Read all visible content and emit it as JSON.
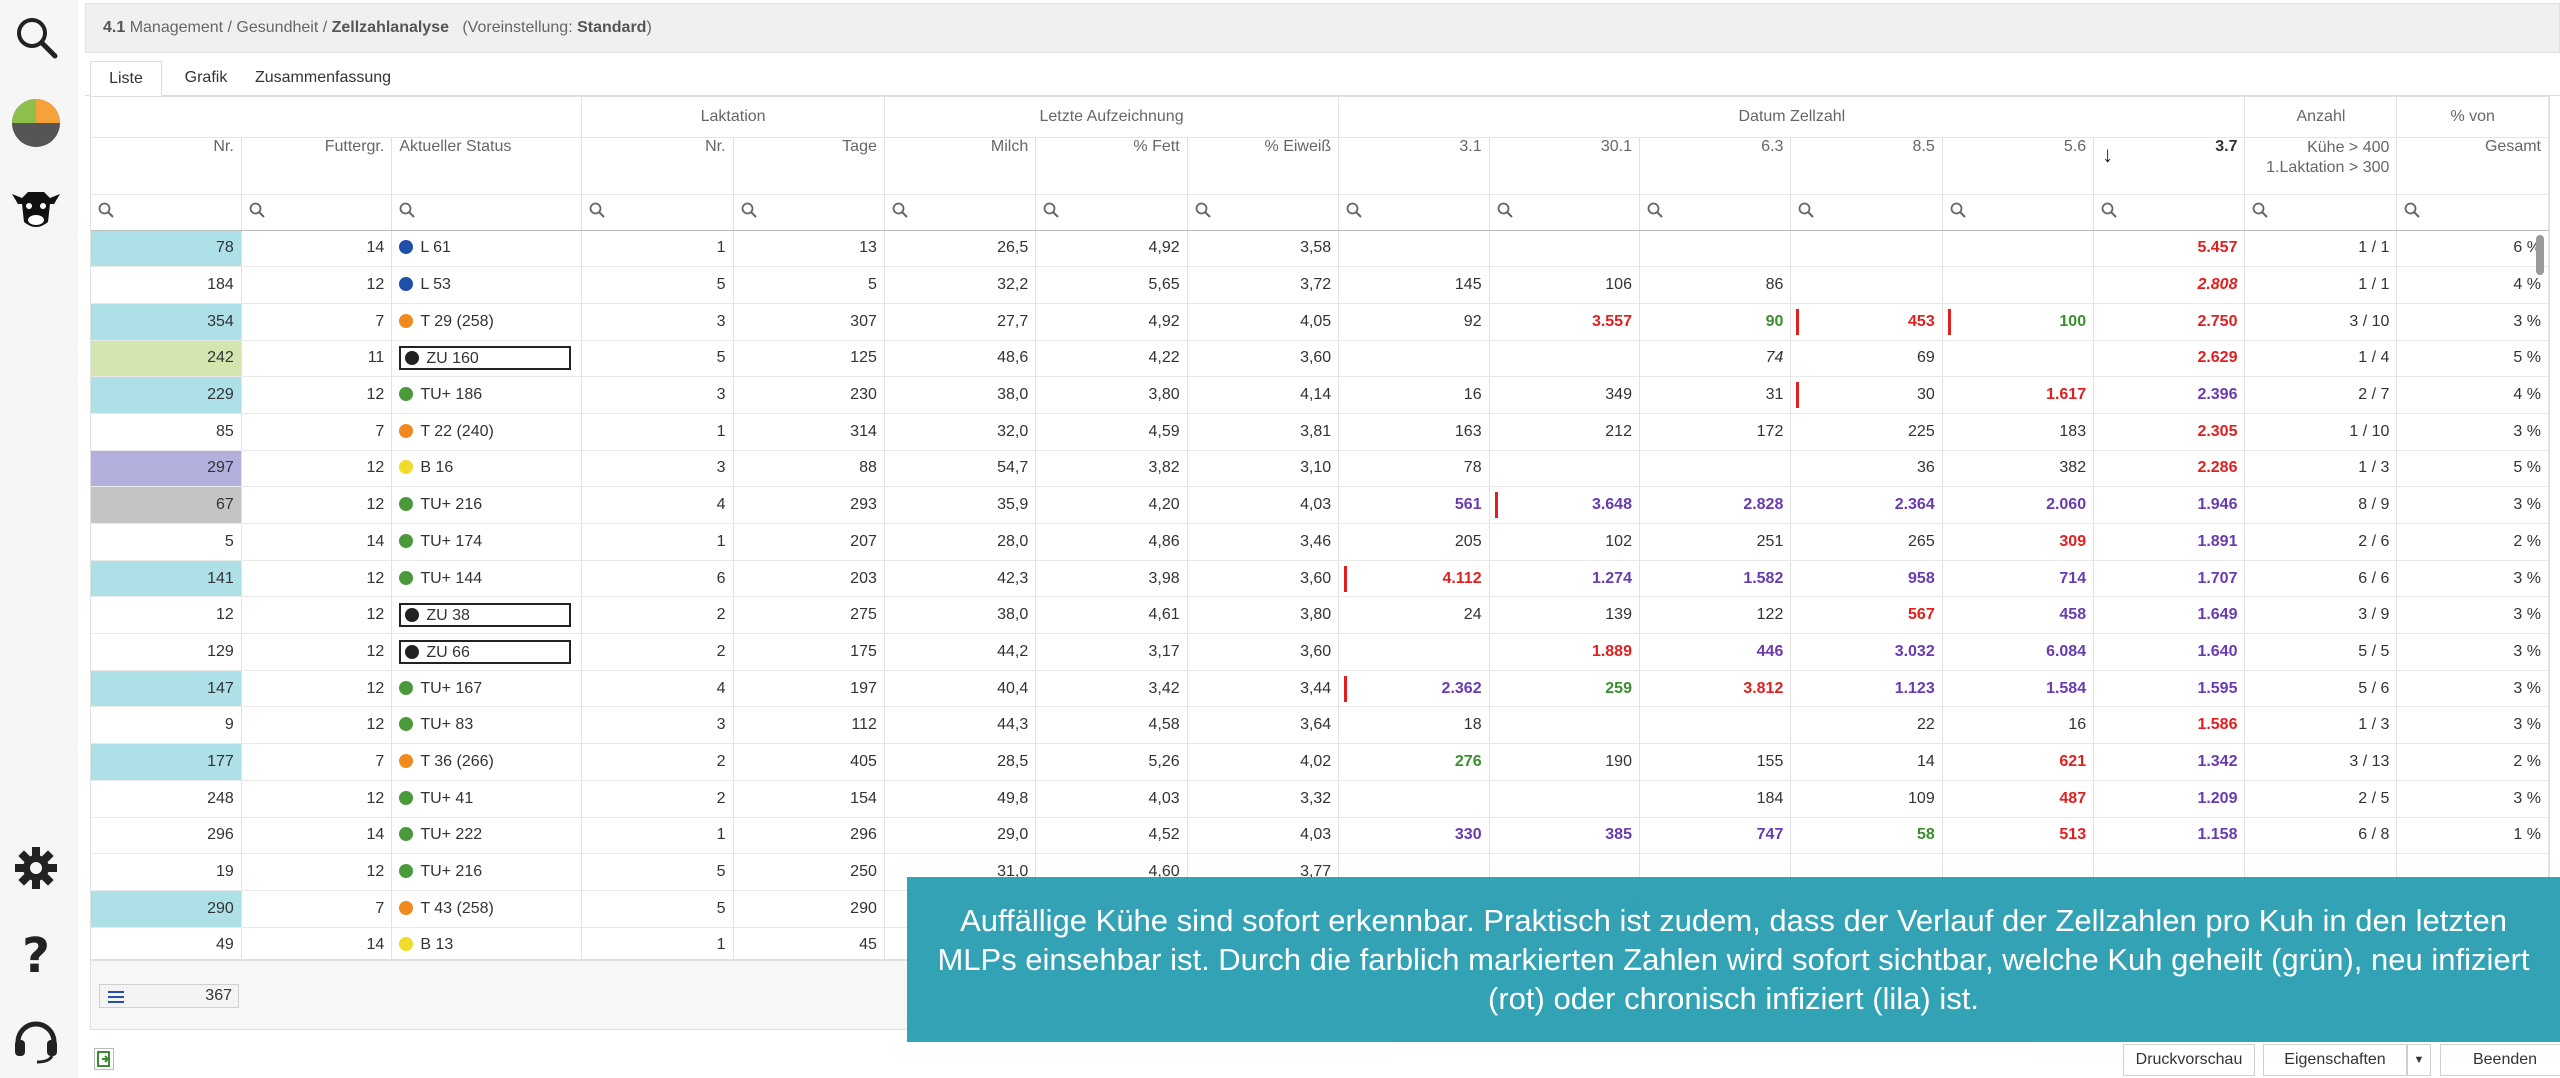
{
  "breadcrumb": {
    "num": "4.1",
    "path": "Management / Gesundheit /",
    "current": "Zellzahlanalyse",
    "preset_prefix": "(Voreinstellung:",
    "preset_value": "Standard",
    "preset_suffix": ")"
  },
  "tabs": [
    "Liste",
    "Grafik",
    "Zusammenfassung"
  ],
  "groups": {
    "laktation": "Laktation",
    "letzte": "Letzte Aufzeichnung",
    "datum": "Datum Zellzahl",
    "anzahl": "Anzahl",
    "prozent": "% von"
  },
  "columns": {
    "nr": "Nr.",
    "futter": "Futtergr.",
    "status": "Aktueller Status",
    "lak_nr": "Nr.",
    "tage": "Tage",
    "milch": "Milch",
    "fett": "% Fett",
    "eiweiss": "% Eiweiß",
    "d1": "3.1",
    "d2": "30.1",
    "d3": "6.3",
    "d4": "8.5",
    "d5": "5.6",
    "d6": "3.7",
    "sort_arrow": "↓",
    "anzahl_l1": "Kühe > 400",
    "anzahl_l2": "1.Laktation > 300",
    "prozent": "Gesamt"
  },
  "colors": {
    "cyan": "#aee0e8",
    "lime": "#d3e6b0",
    "lavender": "#b3b0dd",
    "gray": "#c4c4c4",
    "red": "#e02020",
    "green": "#3b8e2e",
    "purple": "#6a3ab0",
    "dot_blue": "#1f4fa8",
    "dot_orange": "#f08a1e",
    "dot_green": "#4a9a3c",
    "dot_yellow": "#f0dc2a",
    "dot_black": "#222222"
  },
  "rows": [
    {
      "nr": "78",
      "bg": "cyan",
      "futter": "14",
      "dot": "dot_blue",
      "status": "L 61",
      "boxed": false,
      "lak": "1",
      "tage": "13",
      "milch": "26,5",
      "fett": "4,92",
      "eiw": "3,58",
      "z": [
        {
          "v": ""
        },
        {
          "v": ""
        },
        {
          "v": ""
        },
        {
          "v": ""
        },
        {
          "v": ""
        },
        {
          "v": "5.457",
          "c": "r"
        }
      ],
      "anz": "1 / 1",
      "pct": "6 %"
    },
    {
      "nr": "184",
      "bg": "",
      "futter": "12",
      "dot": "dot_blue",
      "status": "L 53",
      "boxed": false,
      "lak": "5",
      "tage": "5",
      "milch": "32,2",
      "fett": "5,65",
      "eiw": "3,72",
      "z": [
        {
          "v": "145"
        },
        {
          "v": "106"
        },
        {
          "v": "86"
        },
        {
          "v": ""
        },
        {
          "v": ""
        },
        {
          "v": "2.808",
          "c": "r i"
        }
      ],
      "anz": "1 / 1",
      "pct": "4 %"
    },
    {
      "nr": "354",
      "bg": "cyan",
      "futter": "7",
      "dot": "dot_orange",
      "status": "T 29 (258)",
      "boxed": false,
      "lak": "3",
      "tage": "307",
      "milch": "27,7",
      "fett": "4,92",
      "eiw": "4,05",
      "z": [
        {
          "v": "92"
        },
        {
          "v": "3.557",
          "c": "r"
        },
        {
          "v": "90",
          "c": "g"
        },
        {
          "v": "453",
          "c": "r",
          "m": true
        },
        {
          "v": "100",
          "c": "g",
          "m": true
        },
        {
          "v": "2.750",
          "c": "r"
        }
      ],
      "anz": "3 / 10",
      "pct": "3 %"
    },
    {
      "nr": "242",
      "bg": "lime",
      "futter": "11",
      "dot": "dot_black",
      "status": "ZU 160",
      "boxed": true,
      "lak": "5",
      "tage": "125",
      "milch": "48,6",
      "fett": "4,22",
      "eiw": "3,60",
      "z": [
        {
          "v": ""
        },
        {
          "v": ""
        },
        {
          "v": "74",
          "c": "i"
        },
        {
          "v": "69"
        },
        {
          "v": ""
        },
        {
          "v": "2.629",
          "c": "r"
        }
      ],
      "anz": "1 / 4",
      "pct": "5 %"
    },
    {
      "nr": "229",
      "bg": "cyan",
      "futter": "12",
      "dot": "dot_green",
      "status": "TU+ 186",
      "boxed": false,
      "lak": "3",
      "tage": "230",
      "milch": "38,0",
      "fett": "3,80",
      "eiw": "4,14",
      "z": [
        {
          "v": "16"
        },
        {
          "v": "349"
        },
        {
          "v": "31"
        },
        {
          "v": "30",
          "m": true
        },
        {
          "v": "1.617",
          "c": "r"
        },
        {
          "v": "2.396",
          "c": "p"
        }
      ],
      "anz": "2 / 7",
      "pct": "4 %"
    },
    {
      "nr": "85",
      "bg": "",
      "futter": "7",
      "dot": "dot_orange",
      "status": "T 22 (240)",
      "boxed": false,
      "lak": "1",
      "tage": "314",
      "milch": "32,0",
      "fett": "4,59",
      "eiw": "3,81",
      "z": [
        {
          "v": "163"
        },
        {
          "v": "212"
        },
        {
          "v": "172"
        },
        {
          "v": "225"
        },
        {
          "v": "183"
        },
        {
          "v": "2.305",
          "c": "r"
        }
      ],
      "anz": "1 / 10",
      "pct": "3 %"
    },
    {
      "nr": "297",
      "bg": "lavender",
      "futter": "12",
      "dot": "dot_yellow",
      "status": "B 16",
      "boxed": false,
      "lak": "3",
      "tage": "88",
      "milch": "54,7",
      "fett": "3,82",
      "eiw": "3,10",
      "z": [
        {
          "v": "78"
        },
        {
          "v": ""
        },
        {
          "v": ""
        },
        {
          "v": "36"
        },
        {
          "v": "382"
        },
        {
          "v": "2.286",
          "c": "r"
        }
      ],
      "anz": "1 / 3",
      "pct": "5 %"
    },
    {
      "nr": "67",
      "bg": "gray",
      "futter": "12",
      "dot": "dot_green",
      "status": "TU+ 216",
      "boxed": false,
      "lak": "4",
      "tage": "293",
      "milch": "35,9",
      "fett": "4,20",
      "eiw": "4,03",
      "z": [
        {
          "v": "561",
          "c": "p"
        },
        {
          "v": "3.648",
          "c": "p",
          "m": true
        },
        {
          "v": "2.828",
          "c": "p"
        },
        {
          "v": "2.364",
          "c": "p"
        },
        {
          "v": "2.060",
          "c": "p"
        },
        {
          "v": "1.946",
          "c": "p"
        }
      ],
      "anz": "8 / 9",
      "pct": "3 %"
    },
    {
      "nr": "5",
      "bg": "",
      "futter": "14",
      "dot": "dot_green",
      "status": "TU+ 174",
      "boxed": false,
      "lak": "1",
      "tage": "207",
      "milch": "28,0",
      "fett": "4,86",
      "eiw": "3,46",
      "z": [
        {
          "v": "205"
        },
        {
          "v": "102"
        },
        {
          "v": "251"
        },
        {
          "v": "265"
        },
        {
          "v": "309",
          "c": "r"
        },
        {
          "v": "1.891",
          "c": "p"
        }
      ],
      "anz": "2 / 6",
      "pct": "2 %"
    },
    {
      "nr": "141",
      "bg": "cyan",
      "futter": "12",
      "dot": "dot_green",
      "status": "TU+ 144",
      "boxed": false,
      "lak": "6",
      "tage": "203",
      "milch": "42,3",
      "fett": "3,98",
      "eiw": "3,60",
      "z": [
        {
          "v": "4.112",
          "c": "r",
          "m": true
        },
        {
          "v": "1.274",
          "c": "p"
        },
        {
          "v": "1.582",
          "c": "p"
        },
        {
          "v": "958",
          "c": "p"
        },
        {
          "v": "714",
          "c": "p"
        },
        {
          "v": "1.707",
          "c": "p"
        }
      ],
      "anz": "6 / 6",
      "pct": "3 %"
    },
    {
      "nr": "12",
      "bg": "",
      "futter": "12",
      "dot": "dot_black",
      "status": "ZU 38",
      "boxed": true,
      "lak": "2",
      "tage": "275",
      "milch": "38,0",
      "fett": "4,61",
      "eiw": "3,80",
      "z": [
        {
          "v": "24"
        },
        {
          "v": "139"
        },
        {
          "v": "122"
        },
        {
          "v": "567",
          "c": "r"
        },
        {
          "v": "458",
          "c": "p"
        },
        {
          "v": "1.649",
          "c": "p"
        }
      ],
      "anz": "3 / 9",
      "pct": "3 %"
    },
    {
      "nr": "129",
      "bg": "",
      "futter": "12",
      "dot": "dot_black",
      "status": "ZU 66",
      "boxed": true,
      "lak": "2",
      "tage": "175",
      "milch": "44,2",
      "fett": "3,17",
      "eiw": "3,60",
      "z": [
        {
          "v": ""
        },
        {
          "v": "1.889",
          "c": "r"
        },
        {
          "v": "446",
          "c": "p"
        },
        {
          "v": "3.032",
          "c": "p"
        },
        {
          "v": "6.084",
          "c": "p"
        },
        {
          "v": "1.640",
          "c": "p"
        }
      ],
      "anz": "5 / 5",
      "pct": "3 %"
    },
    {
      "nr": "147",
      "bg": "cyan",
      "futter": "12",
      "dot": "dot_green",
      "status": "TU+ 167",
      "boxed": false,
      "lak": "4",
      "tage": "197",
      "milch": "40,4",
      "fett": "3,42",
      "eiw": "3,44",
      "z": [
        {
          "v": "2.362",
          "c": "p",
          "m": true
        },
        {
          "v": "259",
          "c": "g"
        },
        {
          "v": "3.812",
          "c": "r"
        },
        {
          "v": "1.123",
          "c": "p"
        },
        {
          "v": "1.584",
          "c": "p"
        },
        {
          "v": "1.595",
          "c": "p"
        }
      ],
      "anz": "5 / 6",
      "pct": "3 %"
    },
    {
      "nr": "9",
      "bg": "",
      "futter": "12",
      "dot": "dot_green",
      "status": "TU+ 83",
      "boxed": false,
      "lak": "3",
      "tage": "112",
      "milch": "44,3",
      "fett": "4,58",
      "eiw": "3,64",
      "z": [
        {
          "v": "18"
        },
        {
          "v": ""
        },
        {
          "v": ""
        },
        {
          "v": "22"
        },
        {
          "v": "16"
        },
        {
          "v": "1.586",
          "c": "r"
        }
      ],
      "anz": "1 / 3",
      "pct": "3 %"
    },
    {
      "nr": "177",
      "bg": "cyan",
      "futter": "7",
      "dot": "dot_orange",
      "status": "T 36 (266)",
      "boxed": false,
      "lak": "2",
      "tage": "405",
      "milch": "28,5",
      "fett": "5,26",
      "eiw": "4,02",
      "z": [
        {
          "v": "276",
          "c": "g"
        },
        {
          "v": "190"
        },
        {
          "v": "155"
        },
        {
          "v": "14"
        },
        {
          "v": "621",
          "c": "r"
        },
        {
          "v": "1.342",
          "c": "p"
        }
      ],
      "anz": "3 / 13",
      "pct": "2 %"
    },
    {
      "nr": "248",
      "bg": "",
      "futter": "12",
      "dot": "dot_green",
      "status": "TU+ 41",
      "boxed": false,
      "lak": "2",
      "tage": "154",
      "milch": "49,8",
      "fett": "4,03",
      "eiw": "3,32",
      "z": [
        {
          "v": ""
        },
        {
          "v": ""
        },
        {
          "v": "184"
        },
        {
          "v": "109"
        },
        {
          "v": "487",
          "c": "r"
        },
        {
          "v": "1.209",
          "c": "p"
        }
      ],
      "anz": "2 / 5",
      "pct": "3 %"
    },
    {
      "nr": "296",
      "bg": "",
      "futter": "14",
      "dot": "dot_green",
      "status": "TU+ 222",
      "boxed": false,
      "lak": "1",
      "tage": "296",
      "milch": "29,0",
      "fett": "4,52",
      "eiw": "4,03",
      "z": [
        {
          "v": "330",
          "c": "p"
        },
        {
          "v": "385",
          "c": "p"
        },
        {
          "v": "747",
          "c": "p"
        },
        {
          "v": "58",
          "c": "g"
        },
        {
          "v": "513",
          "c": "r"
        },
        {
          "v": "1.158",
          "c": "p"
        }
      ],
      "anz": "6 / 8",
      "pct": "1 %"
    },
    {
      "nr": "19",
      "bg": "",
      "futter": "12",
      "dot": "dot_green",
      "status": "TU+ 216",
      "boxed": false,
      "lak": "5",
      "tage": "250",
      "milch": "31,0",
      "fett": "4,60",
      "eiw": "3,77",
      "z": [
        {
          "v": ""
        },
        {
          "v": ""
        },
        {
          "v": ""
        },
        {
          "v": ""
        },
        {
          "v": ""
        },
        {
          "v": ""
        }
      ],
      "anz": "",
      "pct": ""
    },
    {
      "nr": "290",
      "bg": "cyan",
      "futter": "7",
      "dot": "dot_orange",
      "status": "T 43 (258)",
      "boxed": false,
      "lak": "5",
      "tage": "290",
      "milch": "",
      "fett": "",
      "eiw": "",
      "z": [
        {
          "v": ""
        },
        {
          "v": ""
        },
        {
          "v": ""
        },
        {
          "v": ""
        },
        {
          "v": ""
        },
        {
          "v": ""
        }
      ],
      "anz": "",
      "pct": ""
    },
    {
      "nr": "49",
      "bg": "",
      "futter": "14",
      "dot": "dot_yellow",
      "status": "B 13",
      "boxed": false,
      "lak": "1",
      "tage": "45",
      "milch": "",
      "fett": "",
      "eiw": "",
      "z": [
        {
          "v": ""
        },
        {
          "v": ""
        },
        {
          "v": ""
        },
        {
          "v": ""
        },
        {
          "v": ""
        },
        {
          "v": ""
        }
      ],
      "anz": "",
      "pct": ""
    }
  ],
  "footer": {
    "count": "367"
  },
  "buttons": {
    "druck": "Druckvorschau",
    "eigen": "Eigenschaften",
    "beenden": "Beenden"
  },
  "overlay": {
    "text": "Auffällige Kühe sind sofort erkennbar. Praktisch ist zudem, dass der Verlauf der Zellzahlen pro Kuh in den letzten MLPs einsehbar ist. Durch die farblich markierten Zahlen wird sofort sichtbar, welche Kuh geheilt (grün), neu infiziert (rot) oder chronisch infiziert (lila) ist."
  }
}
